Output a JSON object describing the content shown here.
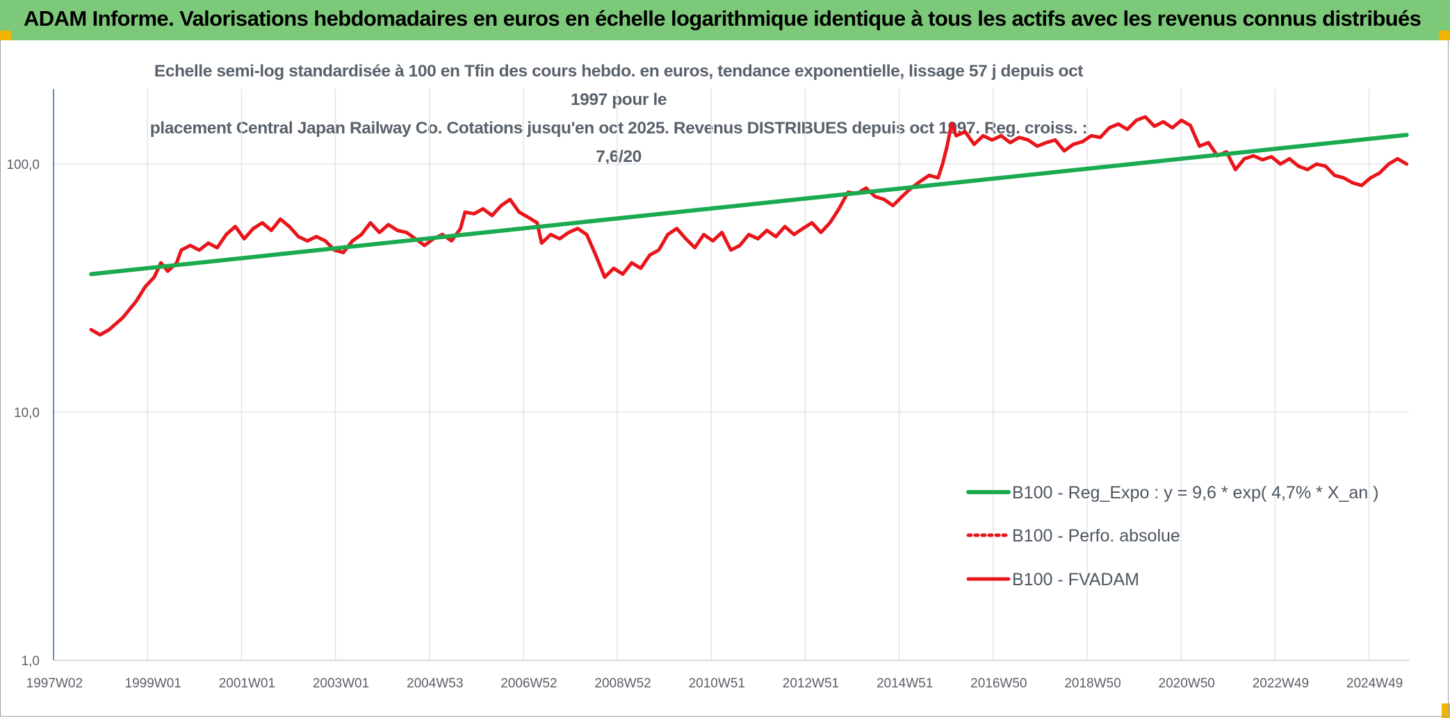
{
  "banner": {
    "title": "ADAM Informe. Valorisations hebdomadaires en euros en échelle logarithmique identique à tous les actifs avec les revenus connus distribués"
  },
  "colors": {
    "banner_bg": "#7dc97a",
    "corner_accent": "#f1b400",
    "trend_line": "#1aaa50",
    "fvadam_line": "#e8151b",
    "grid": "#dfe3e8",
    "axis": "#3f6fb0"
  },
  "chart_data": {
    "type": "line",
    "title_line1": "Echelle semi-log standardisée à 100 en Tfin des cours hebdo. en euros, tendance exponentielle, lissage 57 j depuis oct 1997 pour le",
    "title_line2": "placement Central Japan Railway Co. Cotations jusqu'en oct 2025. Revenus DISTRIBUES depuis oct 1997. Reg. croiss. : 7,6/20",
    "y_scale": "log",
    "ylim": [
      1,
      180
    ],
    "xlim": [
      1997.0,
      2025.85
    ],
    "y_ticks": [
      {
        "value": 1,
        "label": "1,0"
      },
      {
        "value": 10,
        "label": "10,0"
      },
      {
        "value": 100,
        "label": "100,0"
      }
    ],
    "x_ticks": [
      {
        "value": 1997.02,
        "label": "1997W02"
      },
      {
        "value": 1999.0,
        "label": "1999W01"
      },
      {
        "value": 2001.0,
        "label": "2001W01"
      },
      {
        "value": 2003.0,
        "label": "2003W01"
      },
      {
        "value": 2005.0,
        "label": "2004W53"
      },
      {
        "value": 2007.0,
        "label": "2006W52"
      },
      {
        "value": 2009.0,
        "label": "2008W52"
      },
      {
        "value": 2011.0,
        "label": "2010W51"
      },
      {
        "value": 2013.0,
        "label": "2012W51"
      },
      {
        "value": 2015.0,
        "label": "2014W51"
      },
      {
        "value": 2017.0,
        "label": "2016W50"
      },
      {
        "value": 2019.0,
        "label": "2018W50"
      },
      {
        "value": 2021.0,
        "label": "2020W50"
      },
      {
        "value": 2023.0,
        "label": "2022W49"
      },
      {
        "value": 2025.0,
        "label": "2024W49"
      }
    ],
    "grid": true,
    "legend_position": "right",
    "series": [
      {
        "name": "B100 - Reg_Expo : y = 9,6 * exp( 4,7% *  X_an )",
        "style": "solid",
        "color": "#1aaa50",
        "points": [
          [
            1997.8,
            36.0
          ],
          [
            2025.8,
            131.0
          ]
        ]
      },
      {
        "name": "B100 - Perfo. absolue",
        "style": "dotted",
        "color": "#e8151b",
        "points": []
      },
      {
        "name": "B100 - FVADAM",
        "style": "solid",
        "color": "#e8151b",
        "points": [
          [
            1997.8,
            21.5
          ],
          [
            1998.0,
            20.5
          ],
          [
            1998.2,
            21.5
          ],
          [
            1998.5,
            24
          ],
          [
            1998.8,
            28
          ],
          [
            1999.0,
            32
          ],
          [
            1999.2,
            35
          ],
          [
            1999.35,
            40
          ],
          [
            1999.5,
            37
          ],
          [
            1999.7,
            40
          ],
          [
            1999.8,
            45
          ],
          [
            2000.0,
            47
          ],
          [
            2000.2,
            45
          ],
          [
            2000.4,
            48
          ],
          [
            2000.6,
            46
          ],
          [
            2000.8,
            52
          ],
          [
            2001.0,
            56
          ],
          [
            2001.2,
            50
          ],
          [
            2001.4,
            55
          ],
          [
            2001.6,
            58
          ],
          [
            2001.8,
            54
          ],
          [
            2002.0,
            60
          ],
          [
            2002.2,
            56
          ],
          [
            2002.4,
            51
          ],
          [
            2002.6,
            49
          ],
          [
            2002.8,
            51
          ],
          [
            2003.0,
            49
          ],
          [
            2003.2,
            45
          ],
          [
            2003.4,
            44
          ],
          [
            2003.6,
            49
          ],
          [
            2003.8,
            52
          ],
          [
            2004.0,
            58
          ],
          [
            2004.2,
            53
          ],
          [
            2004.4,
            57
          ],
          [
            2004.6,
            54
          ],
          [
            2004.8,
            53
          ],
          [
            2005.0,
            50
          ],
          [
            2005.2,
            47
          ],
          [
            2005.4,
            50
          ],
          [
            2005.6,
            52
          ],
          [
            2005.8,
            49
          ],
          [
            2006.0,
            55
          ],
          [
            2006.1,
            64
          ],
          [
            2006.3,
            63
          ],
          [
            2006.5,
            66
          ],
          [
            2006.7,
            62
          ],
          [
            2006.9,
            68
          ],
          [
            2007.1,
            72
          ],
          [
            2007.3,
            64
          ],
          [
            2007.5,
            61
          ],
          [
            2007.7,
            58
          ],
          [
            2007.8,
            48
          ],
          [
            2008.0,
            52
          ],
          [
            2008.2,
            50
          ],
          [
            2008.4,
            53
          ],
          [
            2008.6,
            55
          ],
          [
            2008.8,
            52
          ],
          [
            2009.0,
            43
          ],
          [
            2009.2,
            35
          ],
          [
            2009.4,
            38
          ],
          [
            2009.6,
            36
          ],
          [
            2009.8,
            40
          ],
          [
            2010.0,
            38
          ],
          [
            2010.2,
            43
          ],
          [
            2010.4,
            45
          ],
          [
            2010.6,
            52
          ],
          [
            2010.8,
            55
          ],
          [
            2011.0,
            50
          ],
          [
            2011.2,
            46
          ],
          [
            2011.4,
            52
          ],
          [
            2011.6,
            49
          ],
          [
            2011.8,
            53
          ],
          [
            2012.0,
            45
          ],
          [
            2012.2,
            47
          ],
          [
            2012.4,
            52
          ],
          [
            2012.6,
            50
          ],
          [
            2012.8,
            54
          ],
          [
            2013.0,
            51
          ],
          [
            2013.2,
            56
          ],
          [
            2013.4,
            52
          ],
          [
            2013.6,
            55
          ],
          [
            2013.8,
            58
          ],
          [
            2014.0,
            53
          ],
          [
            2014.2,
            58
          ],
          [
            2014.4,
            66
          ],
          [
            2014.6,
            77
          ],
          [
            2014.8,
            76
          ],
          [
            2015.0,
            80
          ],
          [
            2015.2,
            74
          ],
          [
            2015.4,
            72
          ],
          [
            2015.6,
            68
          ],
          [
            2015.8,
            74
          ],
          [
            2016.0,
            80
          ],
          [
            2016.2,
            85
          ],
          [
            2016.4,
            90
          ],
          [
            2016.6,
            88
          ],
          [
            2016.7,
            100
          ],
          [
            2016.8,
            118
          ],
          [
            2016.9,
            146
          ],
          [
            2017.0,
            130
          ],
          [
            2017.2,
            135
          ],
          [
            2017.4,
            120
          ],
          [
            2017.6,
            130
          ],
          [
            2017.8,
            125
          ],
          [
            2018.0,
            130
          ],
          [
            2018.2,
            122
          ],
          [
            2018.4,
            128
          ],
          [
            2018.6,
            125
          ],
          [
            2018.8,
            118
          ],
          [
            2019.0,
            122
          ],
          [
            2019.2,
            125
          ],
          [
            2019.4,
            113
          ],
          [
            2019.6,
            120
          ],
          [
            2019.8,
            123
          ],
          [
            2020.0,
            130
          ],
          [
            2020.2,
            128
          ],
          [
            2020.4,
            140
          ],
          [
            2020.6,
            145
          ],
          [
            2020.8,
            138
          ],
          [
            2021.0,
            150
          ],
          [
            2021.2,
            155
          ],
          [
            2021.4,
            142
          ],
          [
            2021.6,
            148
          ],
          [
            2021.8,
            140
          ],
          [
            2022.0,
            150
          ],
          [
            2022.2,
            143
          ],
          [
            2022.4,
            118
          ],
          [
            2022.6,
            122
          ],
          [
            2022.8,
            108
          ],
          [
            2023.0,
            112
          ],
          [
            2023.2,
            95
          ],
          [
            2023.4,
            105
          ],
          [
            2023.6,
            108
          ],
          [
            2023.8,
            104
          ],
          [
            2024.0,
            107
          ],
          [
            2024.2,
            100
          ],
          [
            2024.4,
            105
          ],
          [
            2024.6,
            98
          ],
          [
            2024.8,
            95
          ],
          [
            2025.0,
            100
          ],
          [
            2025.2,
            98
          ],
          [
            2025.4,
            90
          ],
          [
            2025.6,
            88
          ],
          [
            2025.8,
            84
          ],
          [
            2026.0,
            82
          ],
          [
            2026.2,
            88
          ],
          [
            2026.4,
            92
          ],
          [
            2026.6,
            100
          ],
          [
            2026.8,
            105
          ],
          [
            2027.0,
            100
          ]
        ]
      }
    ]
  }
}
